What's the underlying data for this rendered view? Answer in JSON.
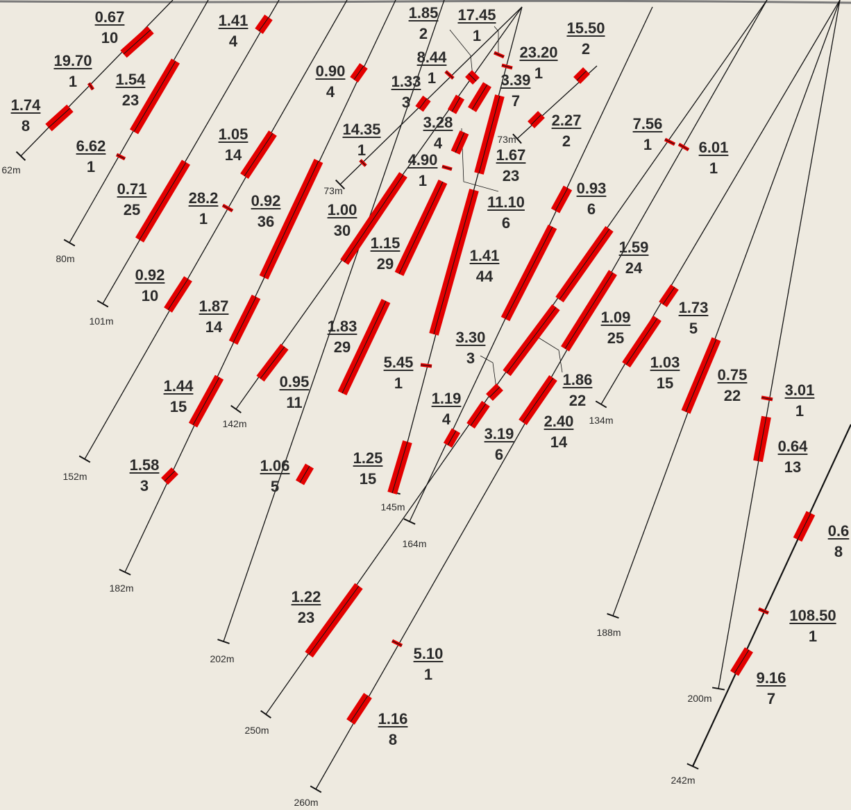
{
  "colors": {
    "background": "#eeeae0",
    "drill_trace": "#111111",
    "intercept": "#e30000",
    "surface": "#7a7a7a",
    "text": "#2a2a2a"
  },
  "holes": [
    {
      "depth": "62m"
    },
    {
      "depth": "80m"
    },
    {
      "depth": "101m"
    },
    {
      "depth": "152m"
    },
    {
      "depth": "182m"
    },
    {
      "depth": "142m"
    },
    {
      "depth": "202m"
    },
    {
      "depth": "73m"
    },
    {
      "depth": "145m"
    },
    {
      "depth": "73m"
    },
    {
      "depth": "164m"
    },
    {
      "depth": "250m"
    },
    {
      "depth": "260m"
    },
    {
      "depth": "134m"
    },
    {
      "depth": "188m"
    },
    {
      "depth": "200m"
    },
    {
      "depth": "242m"
    }
  ],
  "intercepts": [
    {
      "grade": "0.67",
      "width": "10"
    },
    {
      "grade": "19.70",
      "width": "1"
    },
    {
      "grade": "1.74",
      "width": "8"
    },
    {
      "grade": "1.54",
      "width": "23"
    },
    {
      "grade": "6.62",
      "width": "1"
    },
    {
      "grade": "0.71",
      "width": "25"
    },
    {
      "grade": "0.92",
      "width": "10"
    },
    {
      "grade": "1.44",
      "width": "15"
    },
    {
      "grade": "1.58",
      "width": "3"
    },
    {
      "grade": "1.41",
      "width": "4"
    },
    {
      "grade": "1.05",
      "width": "14"
    },
    {
      "grade": "28.2",
      "width": "1"
    },
    {
      "grade": "1.87",
      "width": "14"
    },
    {
      "grade": "0.90",
      "width": "4"
    },
    {
      "grade": "0.92",
      "width": "36"
    },
    {
      "grade": "0.95",
      "width": "11"
    },
    {
      "grade": "1.00",
      "width": "30"
    },
    {
      "grade": "1.83",
      "width": "29"
    },
    {
      "grade": "1.06",
      "width": "5"
    },
    {
      "grade": "14.35",
      "width": "1"
    },
    {
      "grade": "1.85",
      "width": "2"
    },
    {
      "grade": "17.45",
      "width": "1"
    },
    {
      "grade": "8.44",
      "width": "1"
    },
    {
      "grade": "1.33",
      "width": "3"
    },
    {
      "grade": "3.28",
      "width": "4"
    },
    {
      "grade": "4.90",
      "width": "1"
    },
    {
      "grade": "1.15",
      "width": "29"
    },
    {
      "grade": "5.45",
      "width": "1"
    },
    {
      "grade": "1.25",
      "width": "15"
    },
    {
      "grade": "23.20",
      "width": "1"
    },
    {
      "grade": "3.39",
      "width": "7"
    },
    {
      "grade": "1.67",
      "width": "23"
    },
    {
      "grade": "11.10",
      "width": "6"
    },
    {
      "grade": "1.41",
      "width": "44"
    },
    {
      "grade": "1.19",
      "width": "4"
    },
    {
      "grade": "15.50",
      "width": "2"
    },
    {
      "grade": "2.27",
      "width": "2"
    },
    {
      "grade": "0.93",
      "width": "6"
    },
    {
      "grade": "3.30",
      "width": "3"
    },
    {
      "grade": "3.19",
      "width": "6"
    },
    {
      "grade": "1.86",
      "width": "22"
    },
    {
      "grade": "2.40",
      "width": "14"
    },
    {
      "grade": "1.22",
      "width": "23"
    },
    {
      "grade": "5.10",
      "width": "1"
    },
    {
      "grade": "1.16",
      "width": "8"
    },
    {
      "grade": "1.59",
      "width": "24"
    },
    {
      "grade": "1.09",
      "width": "25"
    },
    {
      "grade": "7.56",
      "width": "1"
    },
    {
      "grade": "6.01",
      "width": "1"
    },
    {
      "grade": "1.73",
      "width": "5"
    },
    {
      "grade": "1.03",
      "width": "15"
    },
    {
      "grade": "0.75",
      "width": "22"
    },
    {
      "grade": "3.01",
      "width": "1"
    },
    {
      "grade": "0.64",
      "width": "13"
    },
    {
      "grade": "0.6",
      "width": "8"
    },
    {
      "grade": "108.50",
      "width": "1"
    },
    {
      "grade": "9.16",
      "width": "7"
    }
  ]
}
